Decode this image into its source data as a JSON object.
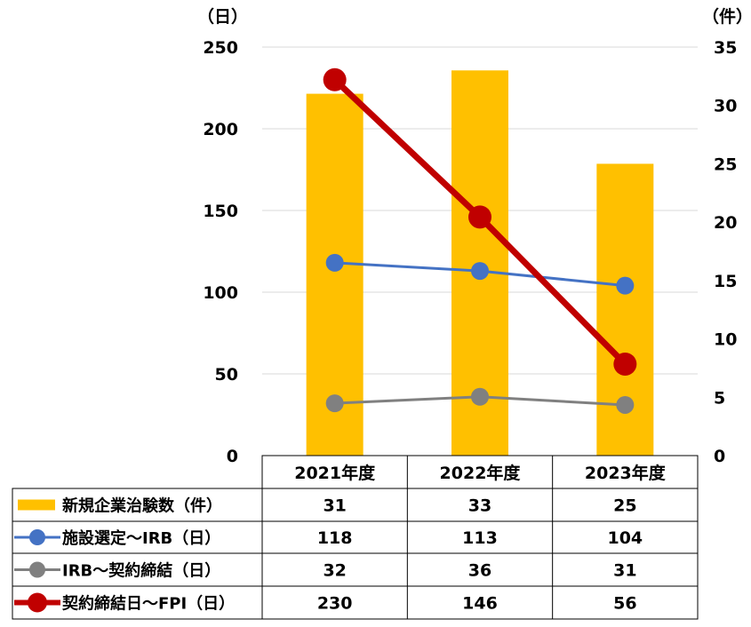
{
  "chart_data": {
    "type": "bar",
    "categories": [
      "2021年度",
      "2022年度",
      "2023年度"
    ],
    "left_axis": {
      "unit_label": "（日）",
      "ylim": [
        0,
        250
      ],
      "ticks": [
        0,
        50,
        100,
        150,
        200,
        250
      ]
    },
    "right_axis": {
      "unit_label": "（件）",
      "ylim": [
        0,
        35
      ],
      "ticks": [
        0,
        5,
        10,
        15,
        20,
        25,
        30,
        35
      ]
    },
    "grid": true,
    "legend_position": "bottom-table",
    "series": [
      {
        "name": "新規企業治験数（件）",
        "kind": "bar",
        "axis": "right",
        "color": "#FFC000",
        "values": [
          31,
          33,
          25
        ]
      },
      {
        "name": "施設選定～IRB（日）",
        "kind": "line",
        "axis": "left",
        "color": "#4472C4",
        "values": [
          118,
          113,
          104
        ]
      },
      {
        "name": "IRB～契約締結（日）",
        "kind": "line",
        "axis": "left",
        "color": "#808080",
        "values": [
          32,
          36,
          31
        ]
      },
      {
        "name": "契約締結日～FPI（日）",
        "kind": "line",
        "axis": "left",
        "color": "#C00000",
        "values": [
          230,
          146,
          56
        ]
      }
    ]
  }
}
